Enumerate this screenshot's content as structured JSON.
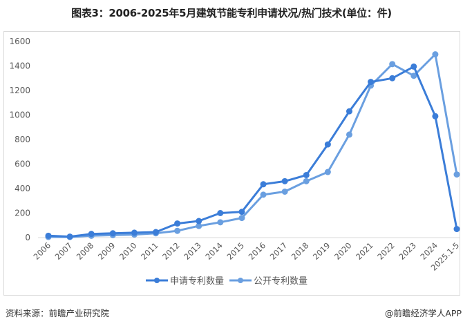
{
  "title": "图表3：2006-2025年5月建筑节能专利申请状况/热门技术(单位：件)",
  "footer": {
    "source": "资料来源：前瞻产业研究院",
    "credit": "@前瞻经济学人APP"
  },
  "colors": {
    "apply": "#3B7DD8",
    "publish": "#6A9FE0",
    "grid": "#d9d9d9"
  },
  "chart_data": {
    "type": "line",
    "title": "图表3：2006-2025年5月建筑节能专利申请状况/热门技术(单位：件)",
    "xlabel": "",
    "ylabel": "",
    "ylim": [
      0,
      1600
    ],
    "yticks": [
      0,
      200,
      400,
      600,
      800,
      1000,
      1200,
      1400,
      1600
    ],
    "grid": false,
    "legend_position": "bottom",
    "categories": [
      "2006",
      "2007",
      "2008",
      "2009",
      "2010",
      "2011",
      "2012",
      "2013",
      "2014",
      "2015",
      "2016",
      "2017",
      "2018",
      "2019",
      "2020",
      "2021",
      "2022",
      "2023",
      "2024",
      "2025.1-5"
    ],
    "series": [
      {
        "name": "申请专利数量",
        "color": "#3B7DD8",
        "values": [
          15,
          8,
          30,
          35,
          40,
          45,
          115,
          135,
          200,
          210,
          435,
          460,
          510,
          760,
          1030,
          1270,
          1300,
          1395,
          990,
          70
        ]
      },
      {
        "name": "公开专利数量",
        "color": "#6A9FE0",
        "values": [
          5,
          5,
          15,
          20,
          25,
          35,
          55,
          95,
          125,
          160,
          350,
          375,
          460,
          535,
          840,
          1240,
          1415,
          1320,
          1495,
          515
        ]
      }
    ]
  }
}
